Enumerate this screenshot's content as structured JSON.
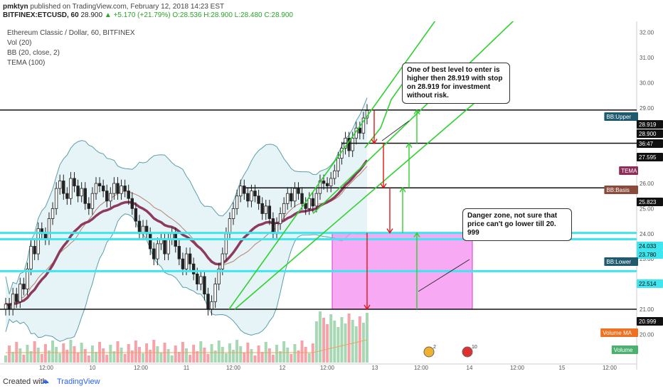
{
  "header": {
    "author": "pmktyn",
    "published": "published on TradingView.com, February 12, 2018 14:23 EST",
    "symbol": "BITFINEX:ETCUSD, 60",
    "last": "28.900",
    "change": "▲ +5.170 (+21.79%)",
    "open": "O:28.536",
    "high": "H:28.900",
    "low": "L:28.480",
    "close": "C:28.900"
  },
  "legend": {
    "title": "Ethereum Classic / Dollar, 60, BITFINEX",
    "vol": "Vol (20)",
    "bb": "BB (20, close, 2)",
    "tema": "TEMA (100)"
  },
  "annotations": {
    "note1": "One of best level to enter is higher then 28.919 with stop on 28.919 for investment without risk.",
    "note2": "Danger zone, not sure that price can't go lower till 20. 999"
  },
  "footer": {
    "created": "Created with",
    "brand": "TradingView"
  },
  "colors": {
    "candle": "#222222",
    "bb_fill": "#e6f4f7",
    "bb_line": "#5b9ea8",
    "tema": "#8e3a5c",
    "basis": "#b5806e",
    "level": "#111111",
    "cyan": "#3ee6f0",
    "green": "#2ed12e",
    "red": "#e01616",
    "zone": "#f48cf0",
    "vol_up": "#a6d8b4",
    "vol_down": "#f5a3a8",
    "vol_ma": "#f0a060"
  },
  "chart_data": {
    "type": "candlestick",
    "ylim": [
      19.5,
      32.5
    ],
    "y_ticks": [
      20.0,
      21.0,
      22.0,
      23.0,
      24.0,
      25.0,
      26.0,
      27.0,
      28.0,
      29.0,
      30.0,
      31.0,
      32.0
    ],
    "x_ticks": [
      "12:00",
      "10",
      "12:00",
      "11",
      "12:00",
      "12",
      "12:00",
      "13",
      "12:00",
      "14",
      "12:00",
      "15",
      "12:00"
    ],
    "price_labels": [
      {
        "text": "BB:Upper",
        "kind": "bb"
      },
      {
        "text": "28.919",
        "kind": "line"
      },
      {
        "text": "28.900",
        "kind": "price"
      },
      {
        "text": "36:47",
        "kind": "price"
      },
      {
        "text": "27.595",
        "kind": "line"
      },
      {
        "text": "TEMA",
        "kind": "tema"
      },
      {
        "text": "BB:Basis",
        "kind": "basis"
      },
      {
        "text": "25.823",
        "kind": "line"
      },
      {
        "text": "24.033",
        "kind": "cyan"
      },
      {
        "text": "23.780",
        "kind": "cyan"
      },
      {
        "text": "BB:Lower",
        "kind": "bb"
      },
      {
        "text": "22.514",
        "kind": "cyan"
      },
      {
        "text": "20.999",
        "kind": "line"
      },
      {
        "text": "Volume MA",
        "kind": "volma"
      },
      {
        "text": "Volume",
        "kind": "vol"
      }
    ],
    "levels": [
      28.919,
      27.595,
      25.823,
      24.033,
      23.78,
      22.514,
      20.999
    ],
    "danger_zone": {
      "x_start": "12 ~11:00",
      "x_end": "13 ~17:00",
      "y": [
        20.999,
        24.033
      ]
    },
    "events": [
      "2",
      "10"
    ],
    "close_series": [
      21.2,
      21.0,
      21.6,
      21.3,
      22.0,
      21.8,
      22.6,
      23.5,
      23.2,
      24.2,
      24.0,
      23.8,
      24.6,
      25.0,
      25.8,
      26.1,
      25.6,
      25.4,
      26.2,
      25.9,
      25.5,
      25.8,
      25.2,
      25.0,
      25.6,
      26.0,
      25.9,
      25.7,
      25.3,
      25.6,
      26.0,
      25.6,
      25.9,
      25.7,
      25.4,
      25.0,
      24.5,
      24.0,
      24.3,
      24.0,
      23.4,
      23.0,
      23.6,
      23.8,
      23.2,
      23.8,
      24.0,
      23.5,
      23.0,
      22.6,
      23.2,
      22.8,
      22.4,
      22.0,
      22.3,
      21.6,
      21.0,
      21.3,
      22.0,
      22.6,
      23.2,
      24.0,
      24.6,
      25.0,
      25.5,
      25.9,
      25.6,
      25.3,
      25.7,
      25.5,
      25.2,
      24.8,
      25.1,
      24.6,
      24.0,
      24.4,
      24.8,
      25.2,
      25.6,
      25.3,
      25.8,
      25.6,
      25.2,
      25.0,
      25.4,
      25.1,
      25.6,
      26.1,
      26.0,
      25.9,
      26.2,
      26.5,
      27.0,
      27.4,
      27.8,
      27.3,
      27.8,
      28.2,
      28.0,
      28.6,
      28.9
    ]
  }
}
